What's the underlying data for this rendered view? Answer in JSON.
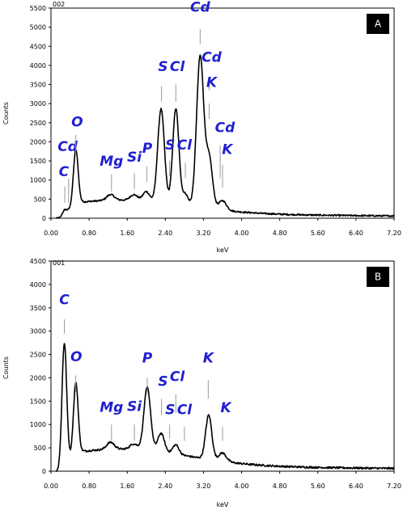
{
  "chart_data": [
    {
      "type": "line",
      "panel": "A",
      "top_label": "002",
      "xlabel": "keV",
      "ylabel": "Counts",
      "xlim": [
        0,
        7.2
      ],
      "ylim": [
        0,
        5500
      ],
      "x_ticks": [
        "0.00",
        "0.80",
        "1.60",
        "2.40",
        "3.20",
        "4.00",
        "4.80",
        "5.60",
        "6.40",
        "7.20"
      ],
      "y_ticks": [
        "0",
        "500",
        "1000",
        "1500",
        "2000",
        "2500",
        "3000",
        "3500",
        "4000",
        "4500",
        "5000",
        "5500"
      ],
      "peaks": [
        {
          "x": 0.28,
          "h": 120,
          "w": 0.05
        },
        {
          "x": 0.52,
          "h": 1400,
          "w": 0.05
        },
        {
          "x": 1.25,
          "h": 150,
          "w": 0.08
        },
        {
          "x": 1.74,
          "h": 150,
          "w": 0.08
        },
        {
          "x": 2.0,
          "h": 250,
          "w": 0.07
        },
        {
          "x": 2.31,
          "h": 2450,
          "w": 0.07
        },
        {
          "x": 2.62,
          "h": 2500,
          "w": 0.065
        },
        {
          "x": 2.82,
          "h": 300,
          "w": 0.06
        },
        {
          "x": 3.13,
          "h": 3950,
          "w": 0.075
        },
        {
          "x": 3.32,
          "h": 1300,
          "w": 0.07
        },
        {
          "x": 3.6,
          "h": 250,
          "w": 0.08
        }
      ],
      "labels": [
        {
          "text": "C",
          "x": 0.27,
          "y": 1100,
          "line_x": 0.29,
          "line_top": 830,
          "line_bottom": 400
        },
        {
          "text": "Cd",
          "x": 0.35,
          "y": 1760,
          "line_x": 0.37,
          "line_top": 1040,
          "line_bottom": 400
        },
        {
          "text": "O",
          "x": 0.55,
          "y": 2400,
          "line_x": 0.52,
          "line_top": 2180,
          "line_bottom": 1700
        },
        {
          "text": "Mg",
          "x": 1.27,
          "y": 1370,
          "line_x": 1.27,
          "line_top": 1150,
          "line_bottom": 700
        },
        {
          "text": "Si",
          "x": 1.75,
          "y": 1480,
          "line_x": 1.75,
          "line_top": 1170,
          "line_bottom": 750
        },
        {
          "text": "P",
          "x": 2.02,
          "y": 1710,
          "line_x": 2.01,
          "line_top": 1360,
          "line_bottom": 950
        },
        {
          "text": "S",
          "x": 2.35,
          "y": 3850,
          "line_x": 2.32,
          "line_top": 3450,
          "line_bottom": 3050
        },
        {
          "text": "Cl",
          "x": 2.65,
          "y": 3850,
          "line_x": 2.62,
          "line_top": 3500,
          "line_bottom": 3050
        },
        {
          "text": "S",
          "x": 2.5,
          "y": 1800,
          "line_x": 2.49,
          "line_top": 1500,
          "line_bottom": 1100
        },
        {
          "text": "Cl",
          "x": 2.8,
          "y": 1800,
          "line_x": 2.82,
          "line_top": 1450,
          "line_bottom": 1050
        },
        {
          "text": "Cd",
          "x": 3.13,
          "y": 5400,
          "line_x": 3.13,
          "line_top": 4950,
          "line_bottom": 4550
        },
        {
          "text": "Cd",
          "x": 3.37,
          "y": 4090,
          "line_x": 3.32,
          "line_top": 3700,
          "line_bottom": 3350
        },
        {
          "text": "K",
          "x": 3.37,
          "y": 3440,
          "line_x": 3.32,
          "line_top": 3000,
          "line_bottom": 2600
        },
        {
          "text": "Cd",
          "x": 3.65,
          "y": 2250,
          "line_x": 3.55,
          "line_top": 1900,
          "line_bottom": 1050
        },
        {
          "text": "K",
          "x": 3.7,
          "y": 1680,
          "line_x": 3.6,
          "line_top": 1400,
          "line_bottom": 800
        }
      ]
    },
    {
      "type": "line",
      "panel": "B",
      "top_label": "001",
      "xlabel": "keV",
      "ylabel": "Counts",
      "xlim": [
        0,
        7.2
      ],
      "ylim": [
        0,
        4500
      ],
      "x_ticks": [
        "0.00",
        "0.80",
        "1.60",
        "2.40",
        "3.20",
        "4.00",
        "4.80",
        "5.60",
        "6.40",
        "7.20"
      ],
      "y_ticks": [
        "0",
        "500",
        "1000",
        "1500",
        "2000",
        "2500",
        "3000",
        "3500",
        "4000",
        "4500"
      ],
      "peaks": [
        {
          "x": 0.28,
          "h": 2650,
          "w": 0.05
        },
        {
          "x": 0.52,
          "h": 1500,
          "w": 0.05
        },
        {
          "x": 1.25,
          "h": 150,
          "w": 0.08
        },
        {
          "x": 1.74,
          "h": 120,
          "w": 0.08
        },
        {
          "x": 2.02,
          "h": 1350,
          "w": 0.07
        },
        {
          "x": 2.31,
          "h": 400,
          "w": 0.07
        },
        {
          "x": 2.62,
          "h": 200,
          "w": 0.065
        },
        {
          "x": 3.31,
          "h": 950,
          "w": 0.065
        },
        {
          "x": 3.6,
          "h": 180,
          "w": 0.08
        }
      ],
      "labels": [
        {
          "text": "C",
          "x": 0.28,
          "y": 3570,
          "line_x": 0.28,
          "line_top": 3250,
          "line_bottom": 2950
        },
        {
          "text": "O",
          "x": 0.53,
          "y": 2350,
          "line_x": 0.52,
          "line_top": 2050,
          "line_bottom": 1700
        },
        {
          "text": "Mg",
          "x": 1.27,
          "y": 1270,
          "line_x": 1.27,
          "line_top": 1000,
          "line_bottom": 650
        },
        {
          "text": "Si",
          "x": 1.75,
          "y": 1290,
          "line_x": 1.75,
          "line_top": 1000,
          "line_bottom": 650
        },
        {
          "text": "P",
          "x": 2.02,
          "y": 2330,
          "line_x": 2.02,
          "line_top": 2000,
          "line_bottom": 1650
        },
        {
          "text": "S",
          "x": 2.35,
          "y": 1830,
          "line_x": 2.32,
          "line_top": 1550,
          "line_bottom": 1200
        },
        {
          "text": "Cl",
          "x": 2.65,
          "y": 1930,
          "line_x": 2.62,
          "line_top": 1650,
          "line_bottom": 1250
        },
        {
          "text": "S",
          "x": 2.5,
          "y": 1220,
          "line_x": 2.49,
          "line_top": 1000,
          "line_bottom": 700
        },
        {
          "text": "Cl",
          "x": 2.8,
          "y": 1220,
          "line_x": 2.8,
          "line_top": 950,
          "line_bottom": 650
        },
        {
          "text": "K",
          "x": 3.3,
          "y": 2330,
          "line_x": 3.3,
          "line_top": 1950,
          "line_bottom": 1550
        },
        {
          "text": "K",
          "x": 3.67,
          "y": 1260,
          "line_x": 3.6,
          "line_top": 950,
          "line_bottom": 650
        }
      ]
    }
  ]
}
